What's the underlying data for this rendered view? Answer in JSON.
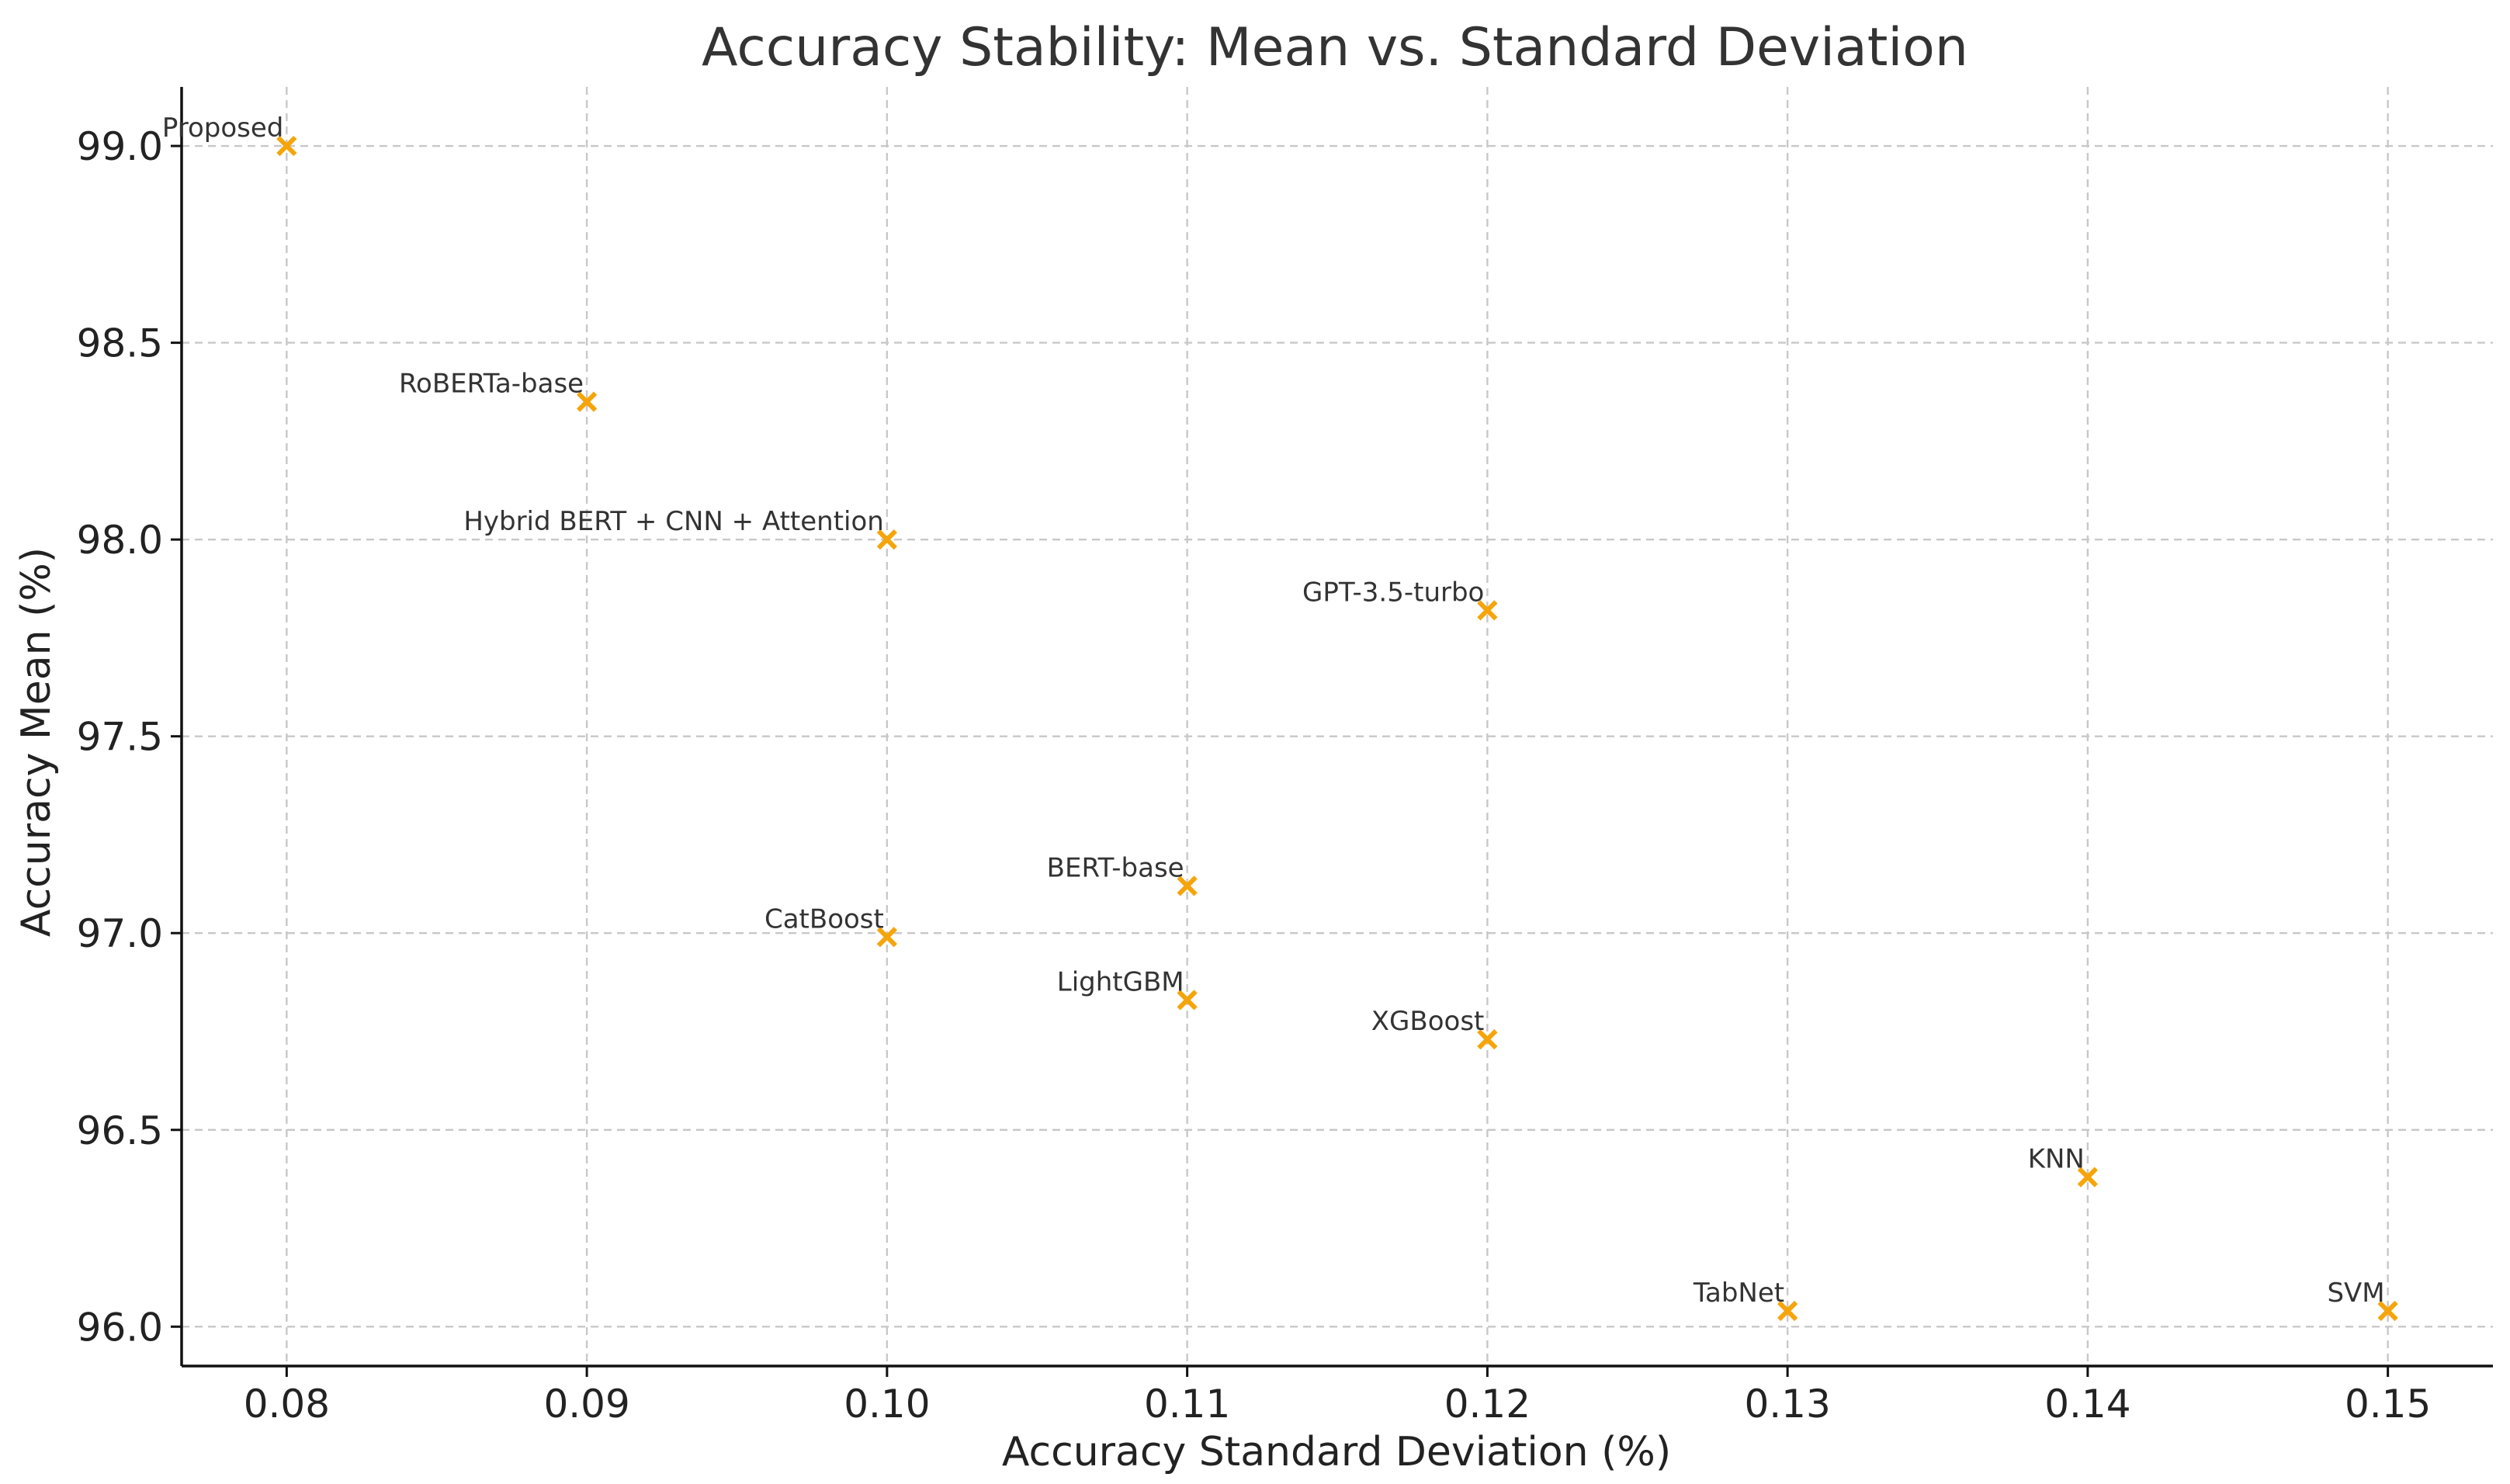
{
  "chart_data": {
    "type": "scatter",
    "title": "Accuracy Stability: Mean vs. Standard Deviation",
    "xlabel": "Accuracy Standard Deviation (%)",
    "ylabel": "Accuracy Mean (%)",
    "xlim": [
      0.0765,
      0.1535
    ],
    "ylim": [
      95.9,
      99.15
    ],
    "xticks": [
      0.08,
      0.09,
      0.1,
      0.11,
      0.12,
      0.13,
      0.14,
      0.15
    ],
    "xtick_labels": [
      "0.08",
      "0.09",
      "0.10",
      "0.11",
      "0.12",
      "0.13",
      "0.14",
      "0.15"
    ],
    "yticks": [
      96.0,
      96.5,
      97.0,
      97.5,
      98.0,
      98.5,
      99.0
    ],
    "ytick_labels": [
      "96.0",
      "96.5",
      "97.0",
      "97.5",
      "98.0",
      "98.5",
      "99.0"
    ],
    "grid": true,
    "marker": "x",
    "marker_color": "#F5A50B",
    "points": [
      {
        "label": "Proposed",
        "x": 0.08,
        "y": 99.0
      },
      {
        "label": "RoBERTa-base",
        "x": 0.09,
        "y": 98.35
      },
      {
        "label": "Hybrid BERT + CNN + Attention",
        "x": 0.1,
        "y": 98.0
      },
      {
        "label": "GPT-3.5-turbo",
        "x": 0.12,
        "y": 97.82
      },
      {
        "label": "BERT-base",
        "x": 0.11,
        "y": 97.12
      },
      {
        "label": "CatBoost",
        "x": 0.1,
        "y": 96.99
      },
      {
        "label": "LightGBM",
        "x": 0.11,
        "y": 96.83
      },
      {
        "label": "XGBoost",
        "x": 0.12,
        "y": 96.73
      },
      {
        "label": "KNN",
        "x": 0.14,
        "y": 96.38
      },
      {
        "label": "TabNet",
        "x": 0.13,
        "y": 96.04
      },
      {
        "label": "SVM",
        "x": 0.15,
        "y": 96.04
      }
    ]
  }
}
